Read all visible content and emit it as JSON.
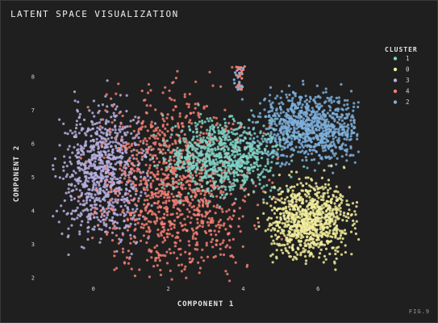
{
  "figure": {
    "title": "LATENT SPACE VISUALIZATION",
    "fig_label": "FIG.9",
    "background": "#1f1f1f"
  },
  "chart_data": {
    "type": "scatter",
    "title": "LATENT SPACE VISUALIZATION",
    "xlabel": "COMPONENT 1",
    "ylabel": "COMPONENT 2",
    "x_ticks": [
      "0",
      "2",
      "4",
      "6"
    ],
    "y_ticks": [
      "2",
      "3",
      "4",
      "5",
      "6",
      "7",
      "8"
    ],
    "xlim": [
      -1.2,
      7.2
    ],
    "ylim": [
      1.8,
      8.4
    ],
    "grid": false,
    "legend": {
      "title": "CLUSTER",
      "position": "top-right",
      "entries": [
        {
          "label": "1",
          "color": "#7fd3c7"
        },
        {
          "label": "0",
          "color": "#f1ec9b"
        },
        {
          "label": "3",
          "color": "#b9b0e0"
        },
        {
          "label": "4",
          "color": "#f47f72"
        },
        {
          "label": "2",
          "color": "#7eafda"
        }
      ]
    },
    "series": [
      {
        "name": "1",
        "color": "#7fd3c7",
        "points": [
          [
            3.6,
            5.7
          ],
          [
            3.2,
            5.2
          ],
          [
            4.0,
            5.6
          ],
          [
            2.9,
            5.9
          ],
          [
            3.8,
            6.1
          ],
          [
            3.4,
            4.9
          ],
          [
            4.3,
            5.3
          ],
          [
            2.6,
            5.4
          ],
          [
            3.1,
            6.3
          ],
          [
            4.4,
            5.9
          ]
        ]
      },
      {
        "name": "0",
        "color": "#f1ec9b",
        "points": [
          [
            5.6,
            3.6
          ],
          [
            5.9,
            4.1
          ],
          [
            5.2,
            3.1
          ],
          [
            6.2,
            3.8
          ],
          [
            5.5,
            4.5
          ],
          [
            6.5,
            4.3
          ],
          [
            5.0,
            3.9
          ],
          [
            6.0,
            3.2
          ],
          [
            5.8,
            2.7
          ],
          [
            6.8,
            3.9
          ]
        ]
      },
      {
        "name": "3",
        "color": "#b9b0e0",
        "points": [
          [
            0.4,
            5.2
          ],
          [
            0.1,
            4.6
          ],
          [
            0.7,
            5.8
          ],
          [
            0.0,
            6.1
          ],
          [
            0.9,
            4.3
          ],
          [
            1.1,
            5.0
          ],
          [
            -0.5,
            6.2
          ],
          [
            0.5,
            3.7
          ],
          [
            1.4,
            5.6
          ],
          [
            0.2,
            5.5
          ]
        ]
      },
      {
        "name": "4",
        "color": "#f47f72",
        "points": [
          [
            1.8,
            4.1
          ],
          [
            2.5,
            3.4
          ],
          [
            3.3,
            3.1
          ],
          [
            1.3,
            6.6
          ],
          [
            2.2,
            7.1
          ],
          [
            2.8,
            4.0
          ],
          [
            3.6,
            3.3
          ],
          [
            1.9,
            6.0
          ],
          [
            2.6,
            6.9
          ],
          [
            2.1,
            3.6
          ]
        ]
      },
      {
        "name": "2",
        "color": "#7eafda",
        "points": [
          [
            5.7,
            6.7
          ],
          [
            6.1,
            6.3
          ],
          [
            5.3,
            7.0
          ],
          [
            6.4,
            6.9
          ],
          [
            5.0,
            6.4
          ],
          [
            5.9,
            5.9
          ],
          [
            4.6,
            6.8
          ],
          [
            6.6,
            6.5
          ],
          [
            5.5,
            6.1
          ],
          [
            3.9,
            8.1
          ]
        ]
      }
    ],
    "note_density": "thousands of small overlapping points"
  }
}
